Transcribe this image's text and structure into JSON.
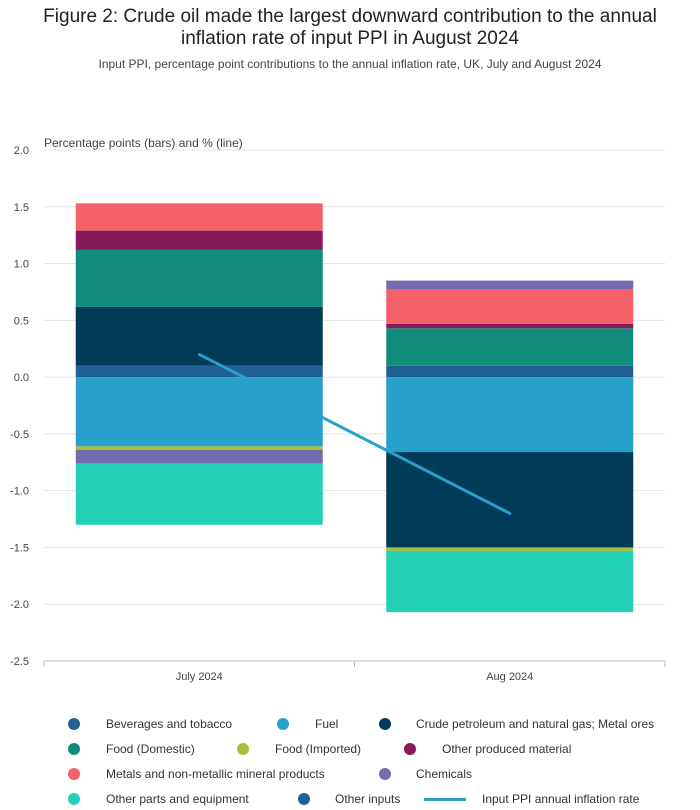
{
  "title_line1": "Figure 2: Crude oil made the largest downward contribution to the annual",
  "title_line2": "inflation rate of input PPI in August 2024",
  "subtitle": "Input PPI, percentage point contributions to the annual inflation rate, UK, July and August 2024",
  "chart_data": {
    "type": "bar",
    "stacked": true,
    "title": "Figure 2: Crude oil made the largest downward contribution to the annual inflation rate of input PPI in August 2024",
    "subtitle": "Input PPI, percentage point contributions to the annual inflation rate, UK, July and August 2024",
    "ylabel": "Percentage points (bars) and % (line)",
    "xlabel": "",
    "ylim": [
      -2.5,
      2.0
    ],
    "yticks": [
      2.0,
      1.5,
      1.0,
      0.5,
      0.0,
      -0.5,
      -1.0,
      -1.5,
      -2.0,
      -2.5
    ],
    "ytick_labels": [
      "2.0",
      "1.5",
      "1.0",
      "0.5",
      "0.0",
      "-0.5",
      "-1.0",
      "-1.5",
      "-2.0",
      "-2.5"
    ],
    "grid": true,
    "legend_position": "bottom",
    "categories": [
      "July 2024",
      "Aug 2024"
    ],
    "series": [
      {
        "name": "Beverages and tobacco",
        "color": "#206095",
        "values": [
          0.1,
          0.1
        ]
      },
      {
        "name": "Fuel",
        "color": "#27a0cc",
        "values": [
          -0.61,
          -0.66
        ]
      },
      {
        "name": "Crude petroleum and natural gas; Metal ores",
        "color": "#003c57",
        "values": [
          0.52,
          -0.84
        ]
      },
      {
        "name": "Food (Domestic)",
        "color": "#118c7b",
        "values": [
          0.5,
          0.33
        ]
      },
      {
        "name": "Food (Imported)",
        "color": "#a8bd3a",
        "values": [
          -0.03,
          -0.03
        ]
      },
      {
        "name": "Other produced material",
        "color": "#871a5b",
        "values": [
          0.17,
          0.04
        ]
      },
      {
        "name": "Metals and non-metallic mineral products",
        "color": "#f66068",
        "values": [
          0.24,
          0.3
        ]
      },
      {
        "name": "Chemicals",
        "color": "#746cb1",
        "values": [
          -0.12,
          0.08
        ]
      },
      {
        "name": "Other parts and equipment",
        "color": "#22d0b6",
        "values": [
          -0.54,
          -0.54
        ]
      },
      {
        "name": "Other inputs",
        "color": "#206095",
        "values": [
          0.0,
          0.0
        ]
      }
    ],
    "line_series": {
      "name": "Input PPI annual inflation rate",
      "color": "#27a0cc",
      "values": [
        0.2,
        -1.2
      ]
    }
  },
  "legend": [
    {
      "label": "Beverages and tobacco",
      "color": "#206095",
      "shape": "dot"
    },
    {
      "label": "Fuel",
      "color": "#27a0cc",
      "shape": "dot"
    },
    {
      "label": "Crude petroleum and natural gas; Metal ores",
      "color": "#003c57",
      "shape": "dot"
    },
    {
      "label": "Food (Domestic)",
      "color": "#118c7b",
      "shape": "dot"
    },
    {
      "label": "Food (Imported)",
      "color": "#a8bd3a",
      "shape": "dot"
    },
    {
      "label": "Other produced material",
      "color": "#871a5b",
      "shape": "dot"
    },
    {
      "label": "Metals and non-metallic mineral products",
      "color": "#f66068",
      "shape": "dot"
    },
    {
      "label": "Chemicals",
      "color": "#746cb1",
      "shape": "dot"
    },
    {
      "label": "Other parts and equipment",
      "color": "#22d0b6",
      "shape": "dot"
    },
    {
      "label": "Other inputs",
      "color": "#206095",
      "shape": "dot"
    },
    {
      "label": "Input PPI annual inflation rate",
      "color": "#27a0cc",
      "shape": "line"
    }
  ]
}
